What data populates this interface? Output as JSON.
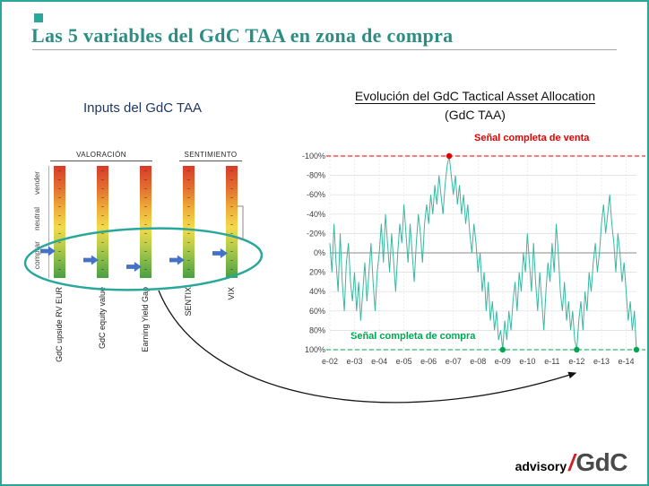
{
  "slide": {
    "title": "Las 5 variables del GdC TAA en zona de compra"
  },
  "colors": {
    "accent_teal": "#2aa79b",
    "title_teal": "#2b8e84",
    "sell_red": "#e60000",
    "buy_green": "#00a651",
    "arrow_blue": "#4472c4",
    "series_teal": "#38b8a0"
  },
  "inputs": {
    "title": "Inputs del GdC TAA",
    "groups": [
      "VALORACIÓN",
      "SENTIMIENTO"
    ],
    "zones": [
      "vender",
      "neutral",
      "comprar"
    ],
    "arrow_color": "#4472c4",
    "bars": [
      {
        "label": "GdC upside RV EUR",
        "group": "VALORACIÓN",
        "arrow_zone": "comprar",
        "arrow_pos": 0.76
      },
      {
        "label": "GdC equity value",
        "group": "VALORACIÓN",
        "arrow_zone": "comprar",
        "arrow_pos": 0.84
      },
      {
        "label": "Earning Yield Gap",
        "group": "VALORACIÓN",
        "arrow_zone": "comprar",
        "arrow_pos": 0.9
      },
      {
        "label": "SENTIX",
        "group": "SENTIMIENTO",
        "arrow_zone": "comprar",
        "arrow_pos": 0.84
      },
      {
        "label": "VIX",
        "group": "SENTIMIENTO",
        "arrow_zone": "comprar",
        "arrow_pos": 0.78
      }
    ]
  },
  "evolution": {
    "title_line1": "Evolución del GdC Tactical Asset Allocation",
    "title_line2": "(GdC TAA)",
    "sell_label": "Señal completa de venta",
    "buy_label": "Señal completa de compra"
  },
  "logo": {
    "advisory": "advisory",
    "slash": "/",
    "gdc": "GdC"
  },
  "chart_data": {
    "type": "line",
    "title": "Evolución del GdC Tactical Asset Allocation (GdC TAA)",
    "y_axis": {
      "min": -100,
      "max": 100,
      "step": 20,
      "unit": "%",
      "inverted": true
    },
    "grid": true,
    "x_ticks": [
      {
        "label": "e-02",
        "index": 0
      },
      {
        "label": "e-03",
        "index": 12
      },
      {
        "label": "e-04",
        "index": 24
      },
      {
        "label": "e-05",
        "index": 36
      },
      {
        "label": "e-06",
        "index": 48
      },
      {
        "label": "e-07",
        "index": 60
      },
      {
        "label": "e-08",
        "index": 72
      },
      {
        "label": "e-09",
        "index": 84
      },
      {
        "label": "e-10",
        "index": 96
      },
      {
        "label": "e-11",
        "index": 108
      },
      {
        "label": "e-12",
        "index": 120
      },
      {
        "label": "e-13",
        "index": 132
      },
      {
        "label": "e-14",
        "index": 144
      }
    ],
    "y_ticks": [
      {
        "label": "-100%",
        "value": -100
      },
      {
        "label": "-80%",
        "value": -80
      },
      {
        "label": "-60%",
        "value": -60
      },
      {
        "label": "-40%",
        "value": -40
      },
      {
        "label": "-20%",
        "value": -20
      },
      {
        "label": "0%",
        "value": 0
      },
      {
        "label": "20%",
        "value": 20
      },
      {
        "label": "40%",
        "value": 40
      },
      {
        "label": "60%",
        "value": 60
      },
      {
        "label": "80%",
        "value": 80
      },
      {
        "label": "100%",
        "value": 100
      }
    ],
    "series": [
      {
        "name": "GdC TAA",
        "color": "#38b8a0",
        "values": [
          -10,
          20,
          -30,
          10,
          40,
          -20,
          30,
          60,
          10,
          -10,
          30,
          50,
          20,
          60,
          30,
          70,
          40,
          10,
          50,
          20,
          -10,
          30,
          60,
          20,
          0,
          -30,
          10,
          -40,
          -10,
          20,
          -20,
          10,
          40,
          0,
          -30,
          -10,
          -50,
          -20,
          10,
          -30,
          0,
          30,
          -10,
          -40,
          -20,
          10,
          -30,
          -50,
          -30,
          -60,
          -40,
          -70,
          -50,
          -80,
          -60,
          -40,
          -70,
          -90,
          -100,
          -80,
          -60,
          -80,
          -50,
          -70,
          -40,
          -60,
          -30,
          -50,
          -20,
          0,
          -30,
          -10,
          20,
          0,
          40,
          20,
          60,
          30,
          70,
          50,
          80,
          60,
          90,
          80,
          100,
          70,
          90,
          60,
          80,
          50,
          30,
          60,
          20,
          40,
          0,
          20,
          -20,
          10,
          40,
          -10,
          30,
          60,
          20,
          50,
          80,
          40,
          10,
          30,
          -10,
          20,
          -30,
          0,
          40,
          60,
          30,
          70,
          50,
          80,
          60,
          90,
          100,
          70,
          50,
          80,
          40,
          60,
          20,
          40,
          10,
          -10,
          20,
          0,
          -30,
          -50,
          -20,
          -40,
          -60,
          -30,
          -10,
          20,
          -20,
          0,
          30,
          10,
          40,
          70,
          50,
          80,
          60,
          100
        ]
      }
    ],
    "annotations": [
      {
        "text": "Señal completa de venta",
        "value": -100,
        "color": "#e60000",
        "style": "dashed"
      },
      {
        "text": "Señal completa de compra",
        "value": 100,
        "color": "#00a651",
        "style": "dashed"
      }
    ]
  }
}
